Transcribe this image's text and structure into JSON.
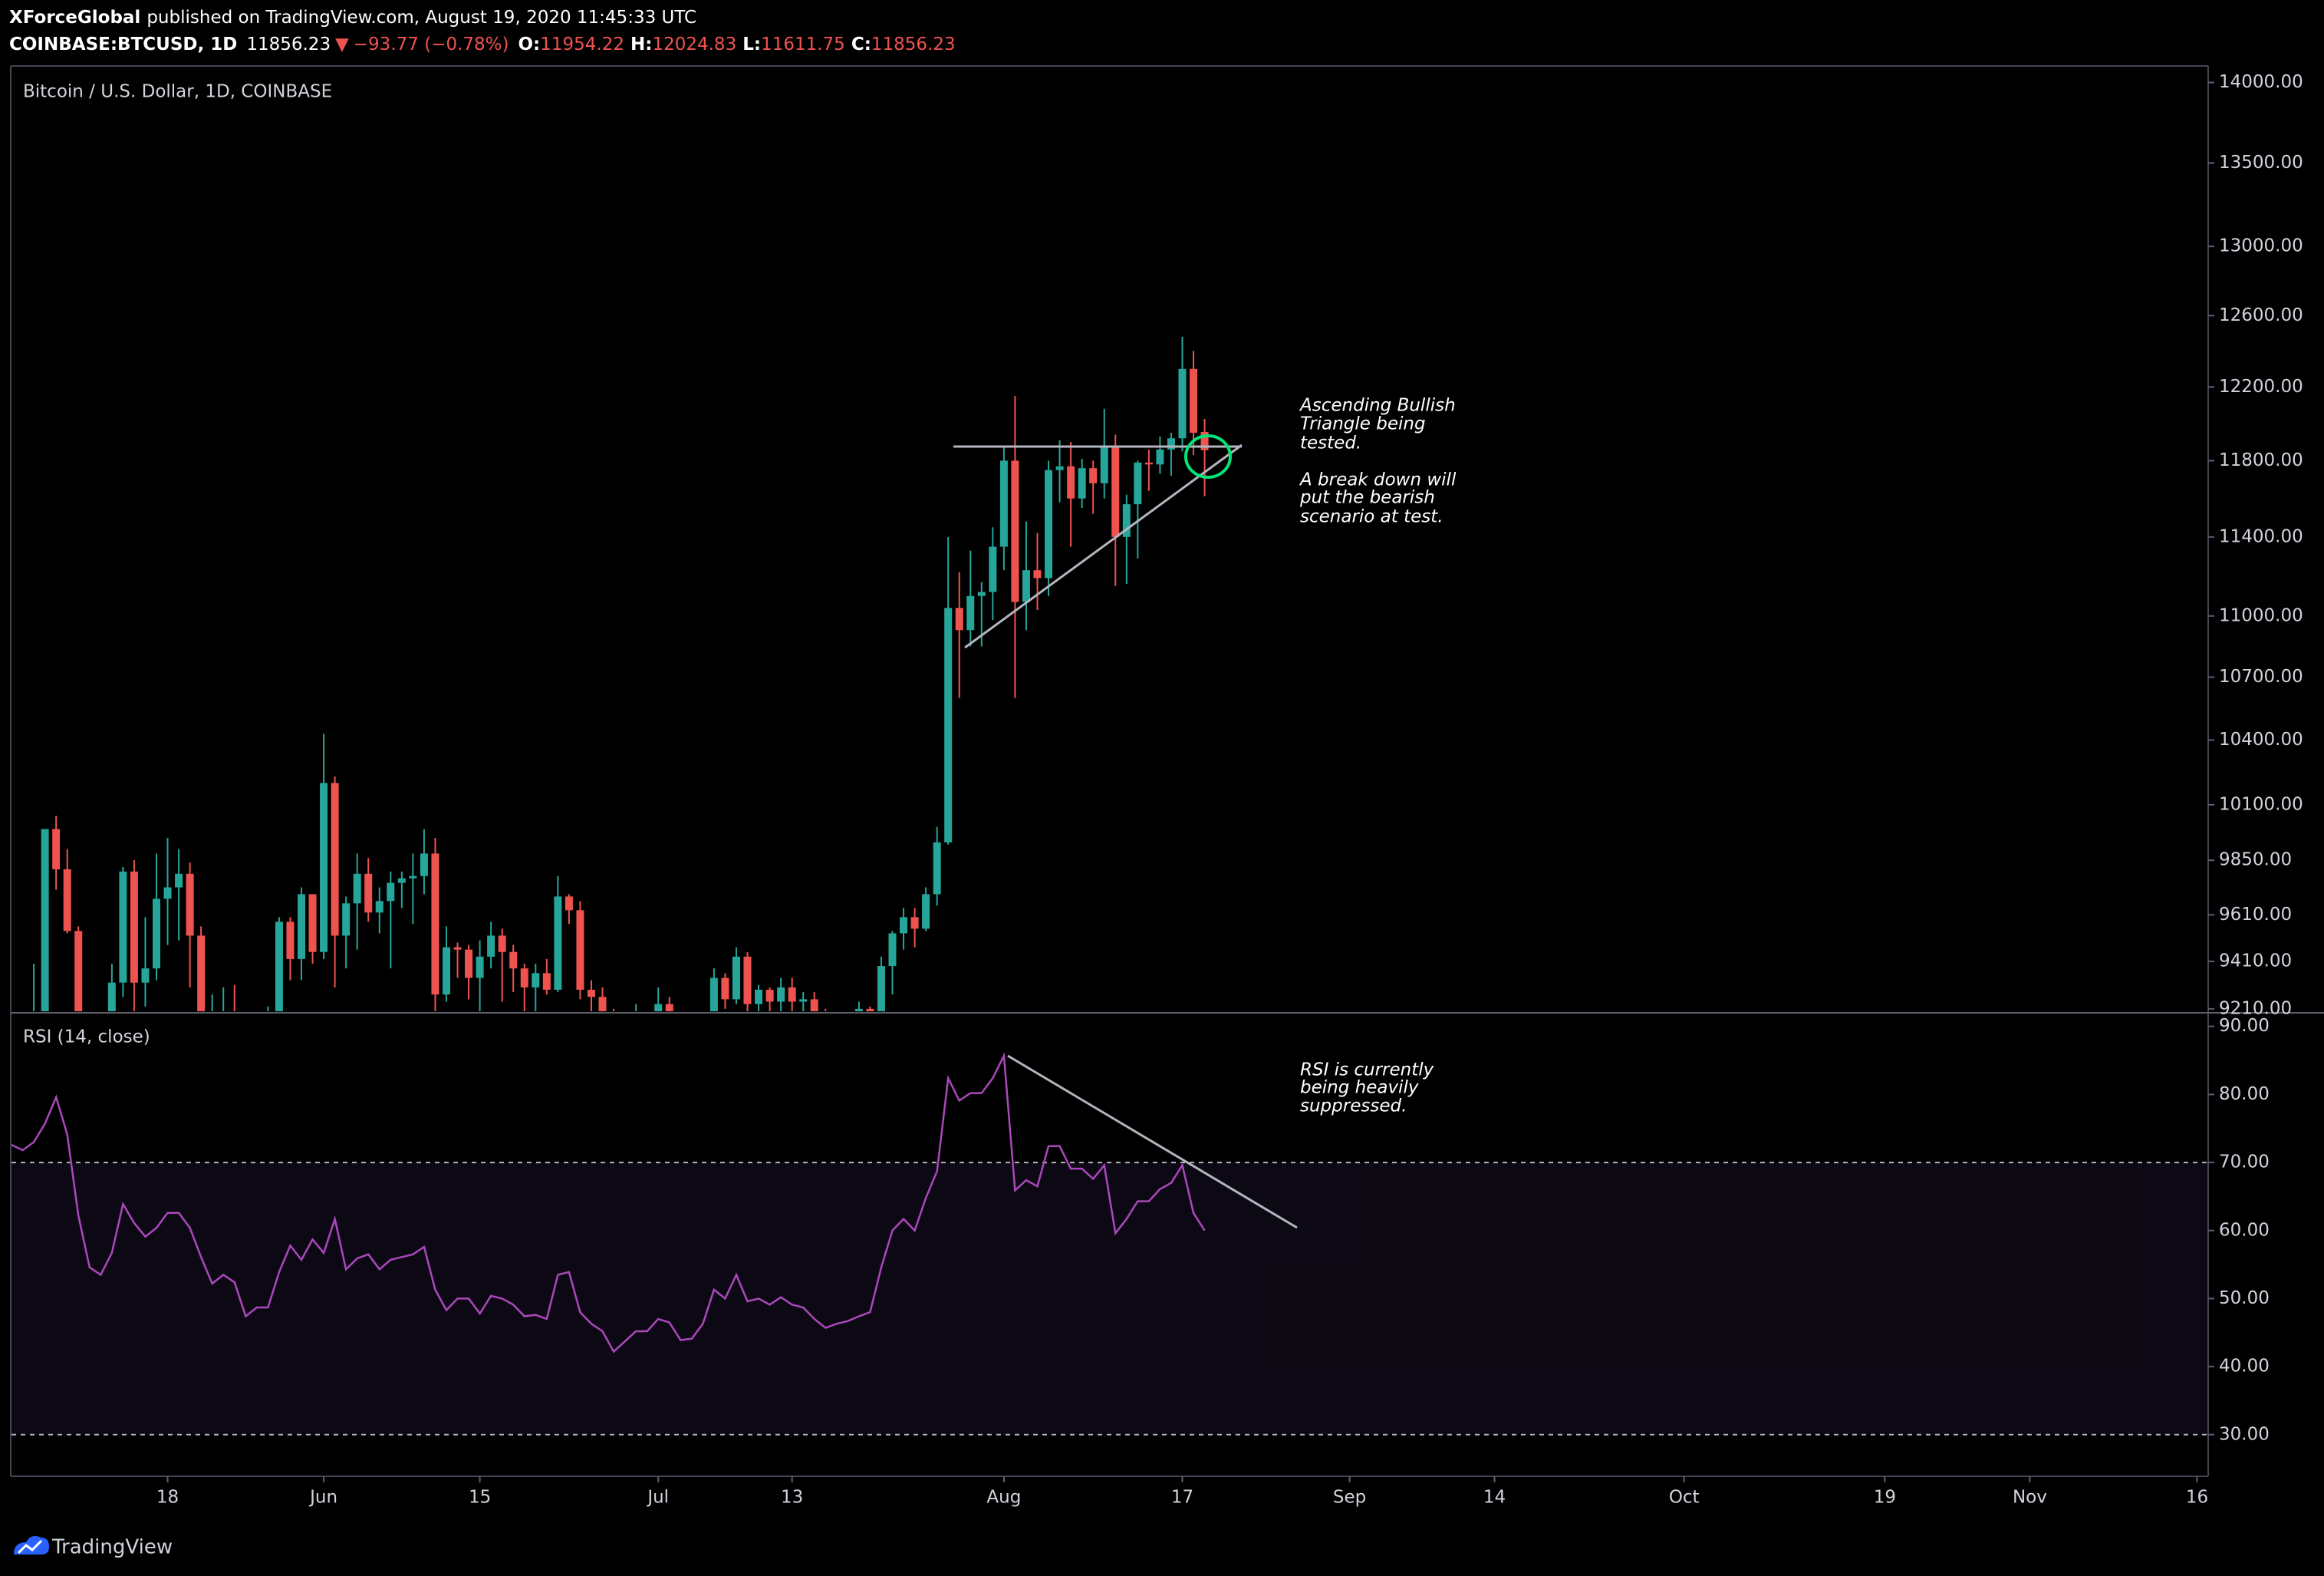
{
  "header": {
    "publisher": "XForceGlobal",
    "published": "published on TradingView.com, August 19, 2020 11:45:33 UTC",
    "symbol": "COINBASE:BTCUSD, 1D",
    "last": "11856.23",
    "change_icon": "▼",
    "change": "−93.77 (−0.78%)",
    "ohlc": [
      {
        "label": "O:",
        "value": "11954.22"
      },
      {
        "label": "H:",
        "value": "12024.83"
      },
      {
        "label": "L:",
        "value": "11611.75"
      },
      {
        "label": "C:",
        "value": "11856.23"
      }
    ]
  },
  "footer": {
    "brand": "TradingView"
  },
  "chart_data": [
    {
      "type": "candlestick",
      "title": "Bitcoin / U.S. Dollar, 1D, COINBASE",
      "up_color": "#26a69a",
      "down_color": "#ef5350",
      "log": true,
      "grid": false,
      "x": [
        "05-04",
        "05-05",
        "05-06",
        "05-07",
        "05-08",
        "05-09",
        "05-10",
        "05-11",
        "05-12",
        "05-13",
        "05-14",
        "05-15",
        "05-16",
        "05-17",
        "05-18",
        "05-19",
        "05-20",
        "05-21",
        "05-22",
        "05-23",
        "05-24",
        "05-25",
        "05-26",
        "05-27",
        "05-28",
        "05-29",
        "05-30",
        "05-31",
        "06-01",
        "06-02",
        "06-03",
        "06-04",
        "06-05",
        "06-06",
        "06-07",
        "06-08",
        "06-09",
        "06-10",
        "06-11",
        "06-12",
        "06-13",
        "06-14",
        "06-15",
        "06-16",
        "06-17",
        "06-18",
        "06-19",
        "06-20",
        "06-21",
        "06-22",
        "06-23",
        "06-24",
        "06-25",
        "06-26",
        "06-27",
        "06-28",
        "06-29",
        "06-30",
        "07-01",
        "07-02",
        "07-03",
        "07-04",
        "07-05",
        "07-06",
        "07-07",
        "07-08",
        "07-09",
        "07-10",
        "07-11",
        "07-12",
        "07-13",
        "07-14",
        "07-15",
        "07-16",
        "07-17",
        "07-18",
        "07-19",
        "07-20",
        "07-21",
        "07-22",
        "07-23",
        "07-24",
        "07-25",
        "07-26",
        "07-27",
        "07-28",
        "07-29",
        "07-30",
        "07-31",
        "08-01",
        "08-02",
        "08-03",
        "08-04",
        "08-05",
        "08-06",
        "08-07",
        "08-08",
        "08-09",
        "08-10",
        "08-11",
        "08-12",
        "08-13",
        "08-14",
        "08-15",
        "08-16",
        "08-17",
        "08-18",
        "08-19"
      ],
      "open": [
        8890,
        8880,
        9030,
        9150,
        9990,
        9810,
        9540,
        8730,
        8570,
        8820,
        9320,
        9800,
        9320,
        9380,
        9680,
        9730,
        9790,
        9520,
        9060,
        9170,
        9180,
        8720,
        8900,
        8840,
        9200,
        9580,
        9420,
        9700,
        9450,
        10200,
        9520,
        9660,
        9790,
        9620,
        9670,
        9750,
        9770,
        9780,
        9880,
        9270,
        9470,
        9460,
        9340,
        9430,
        9520,
        9450,
        9380,
        9300,
        9360,
        9290,
        9690,
        9630,
        9290,
        9260,
        9170,
        9000,
        9120,
        9190,
        9140,
        9230,
        9090,
        9060,
        9130,
        9080,
        9340,
        9250,
        9430,
        9230,
        9290,
        9240,
        9300,
        9240,
        9250,
        9190,
        9130,
        9150,
        9170,
        9210,
        9160,
        9390,
        9530,
        9600,
        9550,
        9700,
        9930,
        11040,
        10930,
        11100,
        11120,
        11350,
        11800,
        11070,
        11230,
        11190,
        11750,
        11770,
        11600,
        11760,
        11680,
        11880,
        11400,
        11570,
        11790,
        11780,
        11860,
        11920,
        12300,
        11954.22
      ],
      "high": [
        8950,
        9100,
        9400,
        9990,
        10050,
        9900,
        9560,
        9000,
        8960,
        9400,
        9820,
        9850,
        9600,
        9880,
        9950,
        9900,
        9840,
        9560,
        9270,
        9300,
        9310,
        8970,
        9020,
        9220,
        9600,
        9600,
        9730,
        9700,
        10430,
        10230,
        9690,
        9880,
        9860,
        9730,
        9800,
        9800,
        9880,
        9990,
        9950,
        9560,
        9490,
        9480,
        9500,
        9580,
        9550,
        9480,
        9400,
        9400,
        9420,
        9780,
        9700,
        9670,
        9330,
        9300,
        9210,
        9190,
        9230,
        9200,
        9300,
        9260,
        9130,
        9180,
        9140,
        9380,
        9360,
        9470,
        9450,
        9310,
        9300,
        9340,
        9340,
        9280,
        9280,
        9210,
        9190,
        9200,
        9240,
        9220,
        9430,
        9540,
        9640,
        9640,
        9730,
        10000,
        11400,
        11220,
        11330,
        11170,
        11450,
        11880,
        12150,
        11480,
        11420,
        11800,
        11910,
        11900,
        11810,
        11800,
        12080,
        11940,
        11620,
        11800,
        11860,
        11930,
        11950,
        12480,
        12400,
        12024.83
      ],
      "low": [
        8530,
        8760,
        8940,
        9050,
        9720,
        9530,
        8200,
        8200,
        8560,
        8800,
        9260,
        9150,
        9220,
        9330,
        9480,
        9500,
        9300,
        8820,
        8940,
        9100,
        8700,
        8630,
        8700,
        8810,
        9110,
        9330,
        9330,
        9400,
        9420,
        9300,
        9380,
        9460,
        9580,
        9530,
        9380,
        9640,
        9570,
        9700,
        9100,
        9240,
        9340,
        9250,
        8900,
        9380,
        9240,
        9280,
        9200,
        9200,
        9270,
        9280,
        9570,
        9250,
        9030,
        9040,
        8850,
        8950,
        9020,
        9070,
        9090,
        8990,
        9040,
        9040,
        8960,
        9060,
        9210,
        9230,
        9190,
        9120,
        9190,
        9150,
        9200,
        9120,
        9160,
        9010,
        9080,
        9120,
        9110,
        9130,
        9150,
        9270,
        9460,
        9470,
        9540,
        9650,
        9920,
        10600,
        10850,
        10850,
        10980,
        11230,
        10600,
        10930,
        11030,
        11100,
        11580,
        11350,
        11550,
        11520,
        11600,
        11150,
        11160,
        11290,
        11640,
        11730,
        11720,
        11850,
        11830,
        11611.75
      ],
      "close": [
        8880,
        9030,
        9150,
        9990,
        9810,
        9540,
        8730,
        8570,
        8820,
        9320,
        9800,
        9320,
        9380,
        9680,
        9730,
        9790,
        9520,
        9060,
        9170,
        9180,
        8720,
        8900,
        8840,
        9200,
        9580,
        9420,
        9700,
        9450,
        10200,
        9520,
        9660,
        9790,
        9620,
        9670,
        9750,
        9770,
        9780,
        9880,
        9270,
        9470,
        9460,
        9340,
        9430,
        9520,
        9450,
        9380,
        9300,
        9360,
        9290,
        9690,
        9630,
        9290,
        9260,
        9170,
        9000,
        9120,
        9190,
        9140,
        9230,
        9090,
        9060,
        9130,
        9080,
        9340,
        9250,
        9430,
        9230,
        9290,
        9240,
        9300,
        9240,
        9250,
        9190,
        9130,
        9150,
        9170,
        9210,
        9160,
        9390,
        9530,
        9600,
        9550,
        9700,
        9930,
        11040,
        10930,
        11100,
        11120,
        11350,
        11800,
        11070,
        11230,
        11190,
        11750,
        11770,
        11600,
        11760,
        11680,
        11880,
        11400,
        11570,
        11790,
        11780,
        11860,
        11920,
        12300,
        11950,
        11856.23
      ],
      "xlim": [
        "05-04",
        "11-17"
      ],
      "ylim": [
        9200,
        14100
      ],
      "yticks": [
        {
          "value": 9210,
          "label": "9210.00"
        },
        {
          "value": 9410,
          "label": "9410.00"
        },
        {
          "value": 9610,
          "label": "9610.00"
        },
        {
          "value": 9850,
          "label": "9850.00"
        },
        {
          "value": 10100,
          "label": "10100.00"
        },
        {
          "value": 10400,
          "label": "10400.00"
        },
        {
          "value": 10700,
          "label": "10700.00"
        },
        {
          "value": 11000,
          "label": "11000.00"
        },
        {
          "value": 11400,
          "label": "11400.00"
        },
        {
          "value": 11800,
          "label": "11800.00"
        },
        {
          "value": 12200,
          "label": "12200.00"
        },
        {
          "value": 12600,
          "label": "12600.00"
        },
        {
          "value": 13000,
          "label": "13000.00"
        },
        {
          "value": 13500,
          "label": "13500.00"
        },
        {
          "value": 14000,
          "label": "14000.00"
        }
      ],
      "annotations": [
        "Ascending Bullish",
        "Triangle being",
        "tested.",
        "A break down will",
        "put the bearish",
        "scenario at test."
      ]
    },
    {
      "type": "line",
      "title": "RSI (14, close)",
      "series": [
        {
          "name": "RSI",
          "color": "#ab47bc",
          "values": [
            72.6,
            71.8,
            73.0,
            75.7,
            79.6,
            74.1,
            62.2,
            54.6,
            53.5,
            56.7,
            63.9,
            61.1,
            59.1,
            60.4,
            62.6,
            62.6,
            60.4,
            56.1,
            52.2,
            53.5,
            52.4,
            47.4,
            48.7,
            48.7,
            53.9,
            57.8,
            55.7,
            58.7,
            56.7,
            61.7,
            54.3,
            55.9,
            56.5,
            54.3,
            55.7,
            56.1,
            56.5,
            57.6,
            51.3,
            48.3,
            50.0,
            50.0,
            47.8,
            50.4,
            50.0,
            49.1,
            47.4,
            47.6,
            47.0,
            53.5,
            53.9,
            48.0,
            46.3,
            45.2,
            42.2,
            43.7,
            45.2,
            45.2,
            47.0,
            46.5,
            43.9,
            44.1,
            46.3,
            51.3,
            50.0,
            53.5,
            49.6,
            50.0,
            49.1,
            50.2,
            49.1,
            48.7,
            47.0,
            45.7,
            46.3,
            46.7,
            47.4,
            48.0,
            54.6,
            60.0,
            61.7,
            60.0,
            64.8,
            68.7,
            82.4,
            79.1,
            80.2,
            80.2,
            82.4,
            85.7,
            65.9,
            67.4,
            66.5,
            72.4,
            72.4,
            69.1,
            69.1,
            67.6,
            69.6,
            59.6,
            61.7,
            64.3,
            64.3,
            66.1,
            67.0,
            69.6,
            62.6,
            60.0
          ]
        }
      ],
      "x": [
        "05-04",
        "05-05",
        "05-06",
        "05-07",
        "05-08",
        "05-09",
        "05-10",
        "05-11",
        "05-12",
        "05-13",
        "05-14",
        "05-15",
        "05-16",
        "05-17",
        "05-18",
        "05-19",
        "05-20",
        "05-21",
        "05-22",
        "05-23",
        "05-24",
        "05-25",
        "05-26",
        "05-27",
        "05-28",
        "05-29",
        "05-30",
        "05-31",
        "06-01",
        "06-02",
        "06-03",
        "06-04",
        "06-05",
        "06-06",
        "06-07",
        "06-08",
        "06-09",
        "06-10",
        "06-11",
        "06-12",
        "06-13",
        "06-14",
        "06-15",
        "06-16",
        "06-17",
        "06-18",
        "06-19",
        "06-20",
        "06-21",
        "06-22",
        "06-23",
        "06-24",
        "06-25",
        "06-26",
        "06-27",
        "06-28",
        "06-29",
        "06-30",
        "07-01",
        "07-02",
        "07-03",
        "07-04",
        "07-05",
        "07-06",
        "07-07",
        "07-08",
        "07-09",
        "07-10",
        "07-11",
        "07-12",
        "07-13",
        "07-14",
        "07-15",
        "07-16",
        "07-17",
        "07-18",
        "07-19",
        "07-20",
        "07-21",
        "07-22",
        "07-23",
        "07-24",
        "07-25",
        "07-26",
        "07-27",
        "07-28",
        "07-29",
        "07-30",
        "07-31",
        "08-01",
        "08-02",
        "08-03",
        "08-04",
        "08-05",
        "08-06",
        "08-07",
        "08-08",
        "08-09",
        "08-10",
        "08-11",
        "08-12",
        "08-13",
        "08-14",
        "08-15",
        "08-16",
        "08-17",
        "08-18",
        "08-19"
      ],
      "xlim": [
        "05-04",
        "11-17"
      ],
      "xticks": [
        {
          "value": "05-18",
          "label": "18"
        },
        {
          "value": "06-01",
          "label": "Jun"
        },
        {
          "value": "06-15",
          "label": "15"
        },
        {
          "value": "07-01",
          "label": "Jul"
        },
        {
          "value": "07-13",
          "label": "13"
        },
        {
          "value": "08-01",
          "label": "Aug"
        },
        {
          "value": "08-17",
          "label": "17"
        },
        {
          "value": "09-01",
          "label": "Sep"
        },
        {
          "value": "09-14",
          "label": "14"
        },
        {
          "value": "10-01",
          "label": "Oct"
        },
        {
          "value": "10-19",
          "label": "19"
        },
        {
          "value": "11-01",
          "label": "Nov"
        },
        {
          "value": "11-16",
          "label": "16"
        }
      ],
      "ylim": [
        24,
        92
      ],
      "yticks": [
        {
          "value": 30,
          "label": "30.00"
        },
        {
          "value": 40,
          "label": "40.00"
        },
        {
          "value": 50,
          "label": "50.00"
        },
        {
          "value": 60,
          "label": "60.00"
        },
        {
          "value": 70,
          "label": "70.00"
        },
        {
          "value": 80,
          "label": "80.00"
        },
        {
          "value": 90,
          "label": "90.00"
        }
      ],
      "band": [
        30,
        70
      ],
      "band_color": "#7e57c2",
      "annotations": [
        "RSI is currently",
        "being heavily",
        "suppressed."
      ]
    }
  ]
}
